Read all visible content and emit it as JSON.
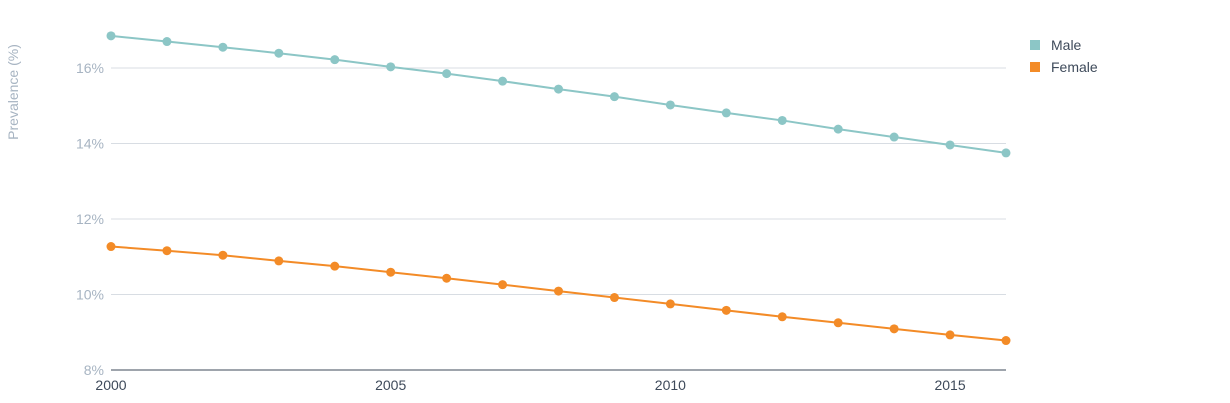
{
  "chart_data": {
    "type": "line",
    "title": "",
    "xlabel": "",
    "ylabel": "Prevalence (%)",
    "x": [
      2000,
      2001,
      2002,
      2003,
      2004,
      2005,
      2006,
      2007,
      2008,
      2009,
      2010,
      2011,
      2012,
      2013,
      2014,
      2015,
      2016
    ],
    "xticks": [
      "2000",
      "2005",
      "2010",
      "2015"
    ],
    "yticks": [
      "8%",
      "10%",
      "12%",
      "14%",
      "16%"
    ],
    "ylim": [
      8,
      17.8
    ],
    "xlim": [
      2000,
      2016
    ],
    "grid": true,
    "legend_position": "top-right",
    "series": [
      {
        "name": "Male",
        "color": "#8cc6c6",
        "values": [
          16.85,
          16.7,
          16.55,
          16.39,
          16.22,
          16.03,
          15.85,
          15.65,
          15.44,
          15.24,
          15.02,
          14.81,
          14.61,
          14.38,
          14.17,
          13.96,
          13.75
        ]
      },
      {
        "name": "Female",
        "color": "#f38b27",
        "values": [
          11.27,
          11.16,
          11.04,
          10.89,
          10.75,
          10.59,
          10.43,
          10.26,
          10.09,
          9.92,
          9.75,
          9.58,
          9.41,
          9.25,
          9.09,
          8.93,
          8.78
        ]
      }
    ]
  }
}
